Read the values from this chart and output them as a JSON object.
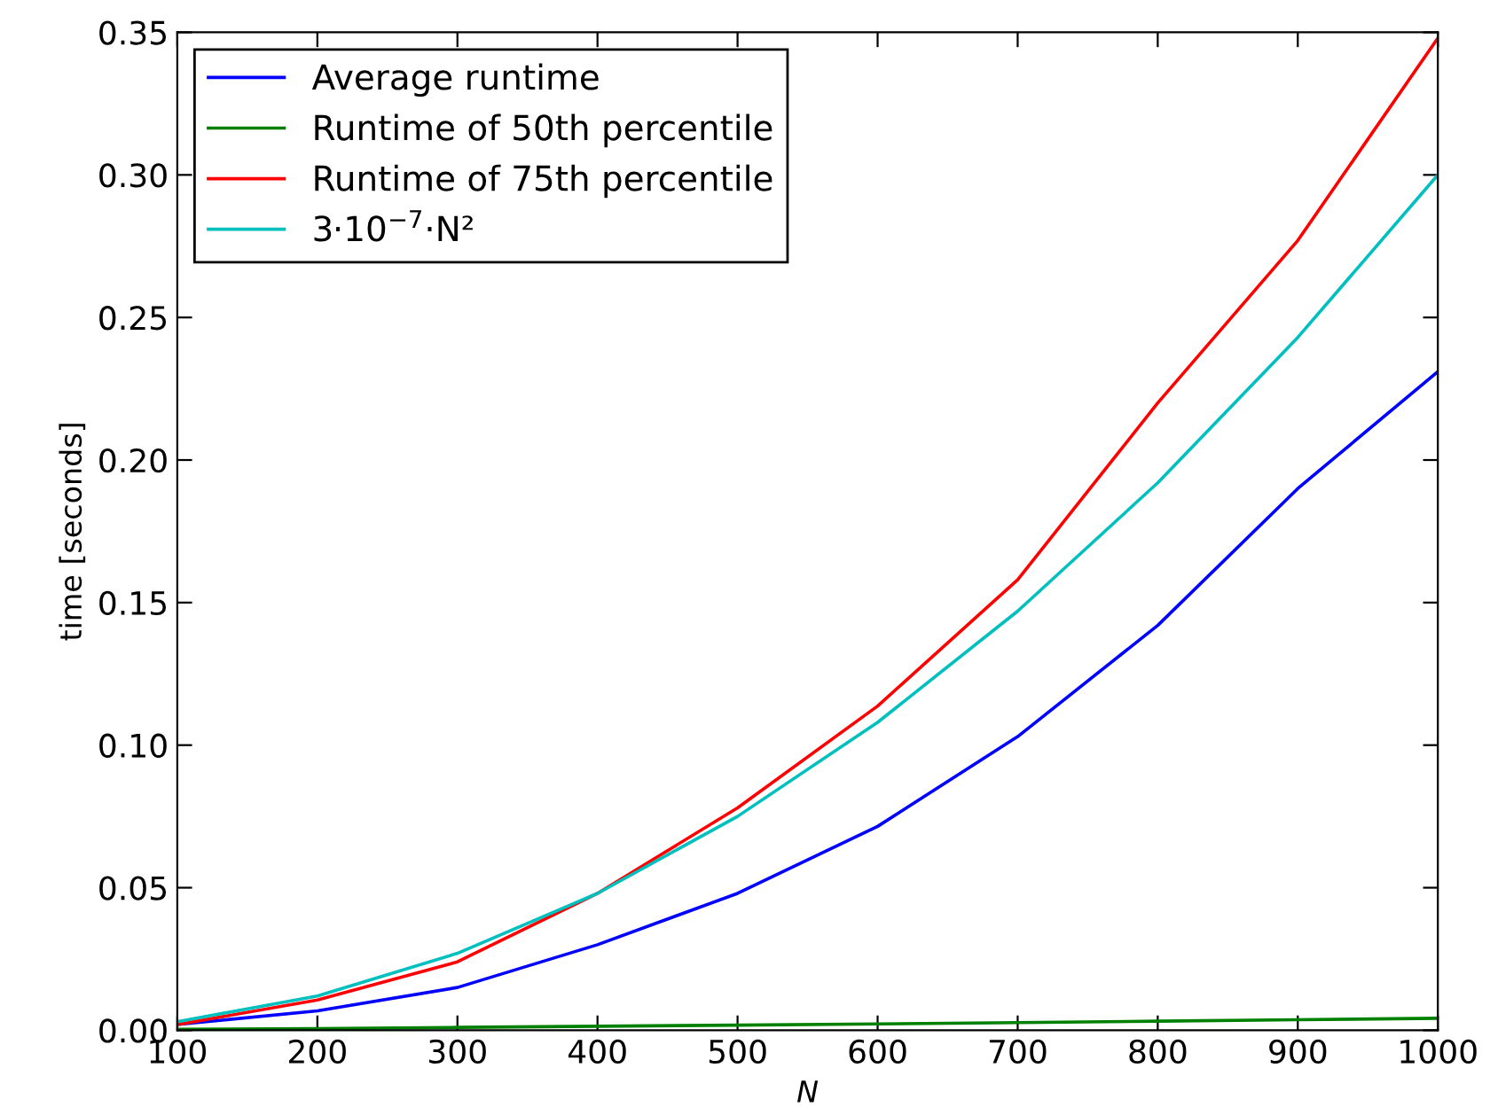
{
  "chart_data": {
    "type": "line",
    "xlabel": "N",
    "ylabel": "time [seconds]",
    "x": [
      100,
      200,
      300,
      400,
      500,
      600,
      700,
      800,
      900,
      1000
    ],
    "series": [
      {
        "name": "Average runtime",
        "color": "#0000ff",
        "values": [
          0.002,
          0.0068,
          0.015,
          0.03,
          0.048,
          0.0715,
          0.103,
          0.142,
          0.19,
          0.231
        ]
      },
      {
        "name": "Runtime of 50th percentile",
        "color": "#008000",
        "values": [
          0.0003,
          0.0006,
          0.001,
          0.0014,
          0.0018,
          0.0022,
          0.0027,
          0.0032,
          0.0037,
          0.0042
        ]
      },
      {
        "name": "Runtime of 75th percentile",
        "color": "#ff0000",
        "values": [
          0.002,
          0.0106,
          0.024,
          0.048,
          0.078,
          0.1137,
          0.158,
          0.22,
          0.277,
          0.348
        ]
      },
      {
        "name": "3·10$^{−7}$·N²",
        "color": "#00bfbf",
        "values": [
          0.003,
          0.012,
          0.027,
          0.048,
          0.075,
          0.108,
          0.147,
          0.192,
          0.243,
          0.3
        ]
      }
    ],
    "xlim": [
      100,
      1000
    ],
    "ylim": [
      0,
      0.35
    ],
    "xticks": [
      100,
      200,
      300,
      400,
      500,
      600,
      700,
      800,
      900,
      1000
    ],
    "yticks": [
      {
        "value": 0,
        "label": "0.00"
      },
      {
        "value": 0.05,
        "label": "0.05"
      },
      {
        "value": 0.1,
        "label": "0.10"
      },
      {
        "value": 0.15,
        "label": "0.15"
      },
      {
        "value": 0.2,
        "label": "0.20"
      },
      {
        "value": 0.25,
        "label": "0.25"
      },
      {
        "value": 0.3,
        "label": "0.30"
      },
      {
        "value": 0.35,
        "label": "0.35"
      }
    ],
    "grid": false,
    "legend": "top left",
    "marker": "none",
    "line_style": "solid"
  }
}
